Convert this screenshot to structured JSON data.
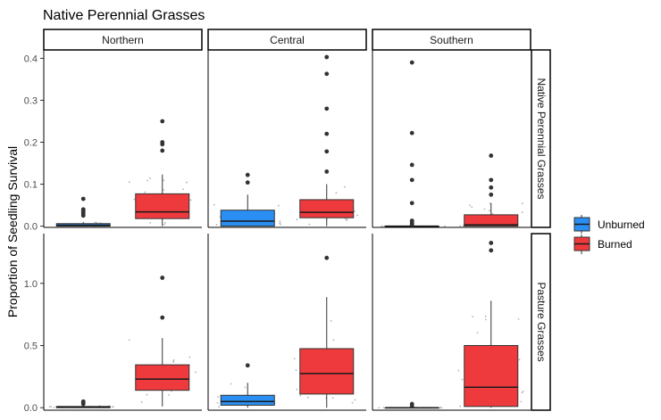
{
  "chart_data": {
    "type": "box",
    "title": "Native Perennial Grasses",
    "xlabel": "",
    "ylabel": "Proportion of Seedling Survival",
    "column_facets": [
      "Northern",
      "Central",
      "Southern"
    ],
    "row_facets": [
      {
        "label": "Native Perennial Grasses",
        "ylim": [
          -0.003,
          0.42
        ],
        "ticks": [
          0.0,
          0.1,
          0.2,
          0.3,
          0.4
        ],
        "tick_labels": [
          "0.0",
          "0.1",
          "0.2",
          "0.3",
          "0.4"
        ]
      },
      {
        "label": "Pasture Grasses",
        "ylim": [
          -0.02,
          1.4
        ],
        "ticks": [
          0.0,
          0.5,
          1.0
        ],
        "tick_labels": [
          "0.0",
          "0.5",
          "1.0"
        ]
      }
    ],
    "series": [
      {
        "name": "Unburned",
        "color": "#2a8ef2"
      },
      {
        "name": "Burned",
        "color": "#ee3a3d"
      }
    ],
    "legend_position": "right",
    "grid": false,
    "boxes": [
      {
        "row": 0,
        "col": 0,
        "series": "Unburned",
        "q1": 0.0,
        "median": 0.002,
        "q3": 0.006,
        "whisker_low": 0.0,
        "whisker_high": 0.01,
        "outliers": [
          0.035,
          0.038,
          0.032,
          0.028,
          0.025,
          0.04,
          0.065
        ]
      },
      {
        "row": 0,
        "col": 0,
        "series": "Burned",
        "q1": 0.018,
        "median": 0.034,
        "q3": 0.077,
        "whisker_low": 0.0,
        "whisker_high": 0.123,
        "outliers": [
          0.18,
          0.195,
          0.2,
          0.25
        ]
      },
      {
        "row": 0,
        "col": 1,
        "series": "Unburned",
        "q1": 0.0,
        "median": 0.012,
        "q3": 0.038,
        "whisker_low": 0.0,
        "whisker_high": 0.075,
        "outliers": [
          0.104,
          0.122
        ]
      },
      {
        "row": 0,
        "col": 1,
        "series": "Burned",
        "q1": 0.02,
        "median": 0.033,
        "q3": 0.063,
        "whisker_low": 0.0,
        "whisker_high": 0.1,
        "outliers": [
          0.13,
          0.178,
          0.22,
          0.28,
          0.363,
          0.403
        ]
      },
      {
        "row": 0,
        "col": 2,
        "series": "Unburned",
        "q1": 0.0,
        "median": 0.0,
        "q3": 0.0,
        "whisker_low": 0.0,
        "whisker_high": 0.0,
        "outliers": [
          0.003,
          0.006,
          0.01,
          0.013,
          0.055,
          0.11,
          0.146,
          0.222,
          0.39
        ]
      },
      {
        "row": 0,
        "col": 2,
        "series": "Burned",
        "q1": 0.0,
        "median": 0.003,
        "q3": 0.027,
        "whisker_low": 0.0,
        "whisker_high": 0.055,
        "outliers": [
          0.075,
          0.092,
          0.11,
          0.168
        ]
      },
      {
        "row": 1,
        "col": 0,
        "series": "Unburned",
        "q1": 0.0,
        "median": 0.005,
        "q3": 0.01,
        "whisker_low": 0.0,
        "whisker_high": 0.02,
        "outliers": [
          0.03,
          0.04,
          0.05
        ]
      },
      {
        "row": 1,
        "col": 0,
        "series": "Burned",
        "q1": 0.14,
        "median": 0.23,
        "q3": 0.345,
        "whisker_low": 0.01,
        "whisker_high": 0.56,
        "outliers": [
          0.725,
          1.045
        ]
      },
      {
        "row": 1,
        "col": 1,
        "series": "Unburned",
        "q1": 0.02,
        "median": 0.05,
        "q3": 0.1,
        "whisker_low": 0.0,
        "whisker_high": 0.2,
        "outliers": [
          0.34
        ]
      },
      {
        "row": 1,
        "col": 1,
        "series": "Burned",
        "q1": 0.11,
        "median": 0.275,
        "q3": 0.475,
        "whisker_low": 0.0,
        "whisker_high": 0.89,
        "outliers": [
          1.205
        ]
      },
      {
        "row": 1,
        "col": 2,
        "series": "Unburned",
        "q1": 0.0,
        "median": 0.0,
        "q3": 0.0,
        "whisker_low": 0.0,
        "whisker_high": 0.0,
        "outliers": [
          0.01,
          0.03
        ]
      },
      {
        "row": 1,
        "col": 2,
        "series": "Burned",
        "q1": 0.01,
        "median": 0.165,
        "q3": 0.5,
        "whisker_low": 0.0,
        "whisker_high": 0.86,
        "outliers": [
          1.265,
          1.325
        ]
      }
    ]
  }
}
